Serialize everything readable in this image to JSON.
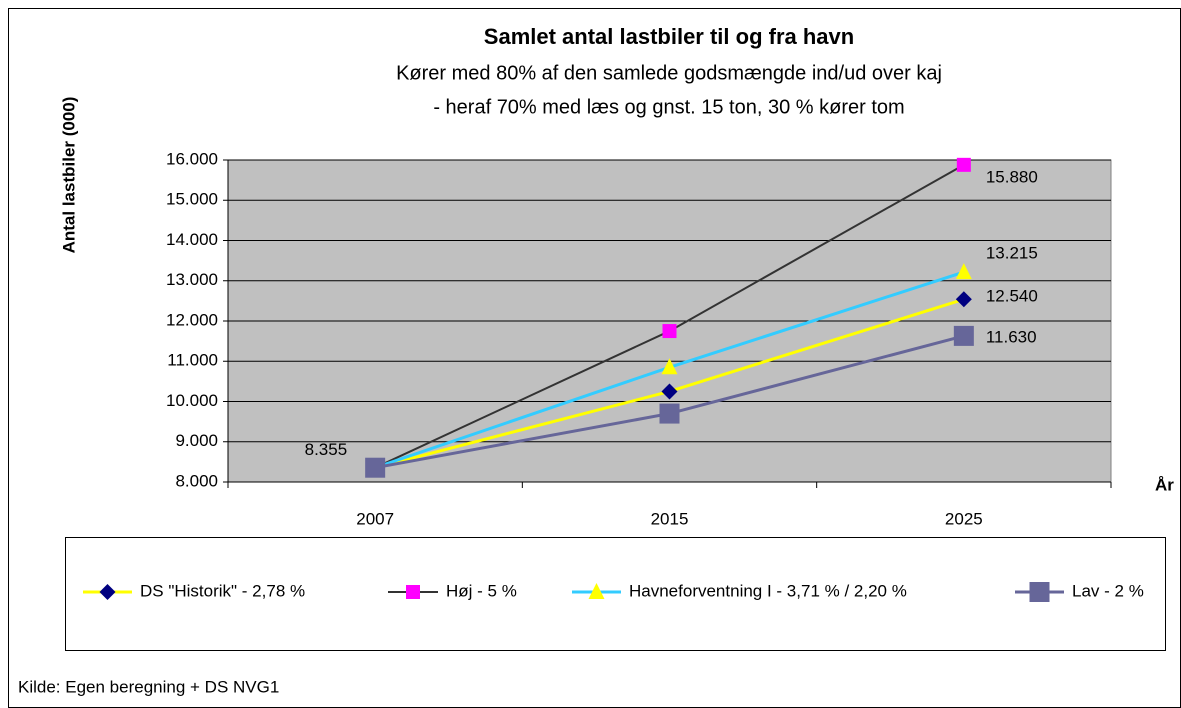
{
  "chart_data": {
    "type": "line",
    "title": "Samlet antal lastbiler til og fra havn",
    "subtitle": [
      "Kører med 80% af den samlede godsmængde ind/ud over kaj",
      "- heraf 70% med læs og gnst. 15 ton, 30 % kører tom"
    ],
    "y_label": "Antal lastbiler (000)",
    "x_label": "År",
    "source": "Kilde: Egen beregning + DS NVG1",
    "categories": [
      "2007",
      "2015",
      "2025"
    ],
    "ylim": [
      8000,
      16000
    ],
    "yticks": [
      {
        "value": 8000,
        "label": "8.000"
      },
      {
        "value": 9000,
        "label": "9.000"
      },
      {
        "value": 10000,
        "label": "10.000"
      },
      {
        "value": 11000,
        "label": "11.000"
      },
      {
        "value": 12000,
        "label": "12.000"
      },
      {
        "value": 13000,
        "label": "13.000"
      },
      {
        "value": 14000,
        "label": "14.000"
      },
      {
        "value": 15000,
        "label": "15.000"
      },
      {
        "value": 16000,
        "label": "16.000"
      }
    ],
    "grid": true,
    "plot_background": "#c0c0c0",
    "series": [
      {
        "name": "DS \"Historik\" - 2,78 %",
        "color": "#ffff00",
        "marker": "diamond",
        "marker_color": "#000080",
        "values": [
          8355,
          10250,
          12540
        ],
        "value_labels": [
          null,
          null,
          "12.540"
        ]
      },
      {
        "name": "Høj - 5 %",
        "color": "#333333",
        "marker": "square",
        "marker_color": "#ff00ff",
        "values": [
          8355,
          11750,
          15880
        ],
        "value_labels": [
          null,
          null,
          "15.880"
        ]
      },
      {
        "name": "Havneforventning I - 3,71 % / 2,20 %",
        "color": "#33ccff",
        "marker": "triangle",
        "marker_color": "#ffff00",
        "values": [
          8355,
          10850,
          13215
        ],
        "value_labels": [
          null,
          null,
          "13.215"
        ]
      },
      {
        "name": "Lav - 2 %",
        "color": "#666699",
        "marker": "bigsquare",
        "marker_color": "#666699",
        "values": [
          8355,
          9700,
          11630
        ],
        "value_labels": [
          "8.355",
          null,
          "11.630"
        ]
      }
    ]
  }
}
